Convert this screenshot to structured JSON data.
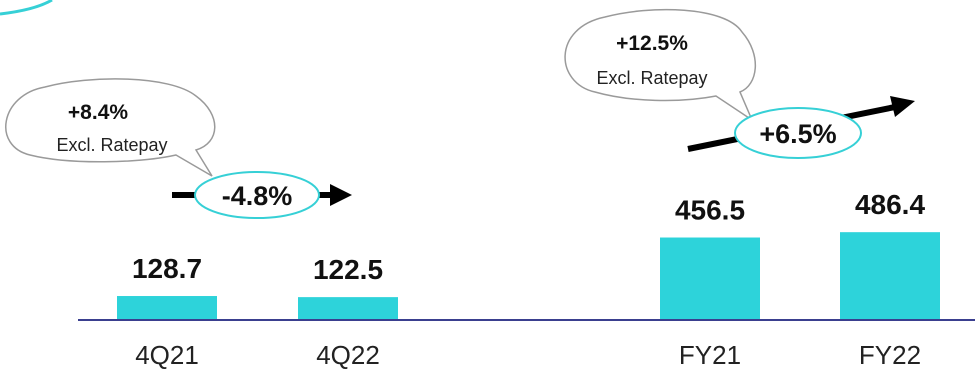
{
  "chart_data": {
    "type": "bar",
    "categories": [
      "4Q21",
      "4Q22",
      "FY21",
      "FY22"
    ],
    "values": [
      128.7,
      122.5,
      456.5,
      486.4
    ],
    "data_labels": [
      "128.7",
      "122.5",
      "456.5",
      "486.4"
    ],
    "title": "",
    "xlabel": "",
    "ylabel": "",
    "grid": false,
    "colors": {
      "bar": "#2dd3da",
      "baseline": "#3a3f8f",
      "accent": "#36d0d6"
    },
    "annotations": [
      {
        "group": "quarter",
        "growth": "-4.8%",
        "bubble_pct": "+8.4%",
        "bubble_text": "Excl. Ratepay"
      },
      {
        "group": "year",
        "growth": "+6.5%",
        "bubble_pct": "+12.5%",
        "bubble_text": "Excl. Ratepay"
      }
    ]
  }
}
